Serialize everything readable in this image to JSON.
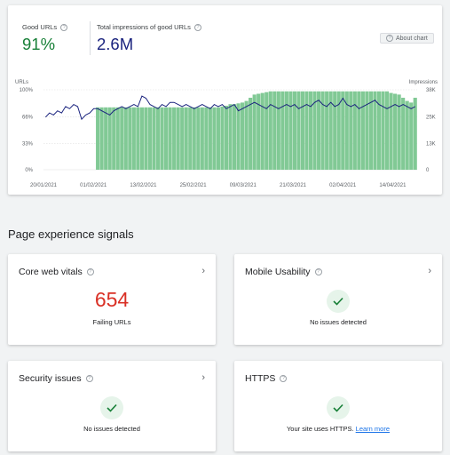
{
  "summary": {
    "good_urls": {
      "label": "Good URLs",
      "value": "91%",
      "color": "#188038"
    },
    "impressions": {
      "label": "Total impressions of good URLs",
      "value": "2.6M",
      "color": "#1a237e"
    },
    "about_chart": "About chart"
  },
  "chart_data": {
    "type": "bar",
    "left_axis": {
      "label": "URLs",
      "ticks": [
        "100%",
        "66%",
        "33%",
        "0%"
      ]
    },
    "right_axis": {
      "label": "Impressions",
      "ticks": [
        "38K",
        "25K",
        "13K",
        "0"
      ]
    },
    "x_tick_labels": [
      "20/01/2021",
      "01/02/2021",
      "13/02/2021",
      "25/02/2021",
      "09/03/2021",
      "21/03/2021",
      "02/04/2021",
      "14/04/2021"
    ],
    "series": [
      {
        "values": [
          0,
          0,
          0,
          0,
          0,
          0,
          0,
          0,
          0,
          0,
          0,
          0,
          0,
          78,
          78,
          78,
          78,
          78,
          78,
          78,
          78,
          78,
          78,
          78,
          78,
          78,
          78,
          78,
          78,
          78,
          78,
          78,
          78,
          78,
          78,
          78,
          78,
          78,
          78,
          78,
          78,
          78,
          78,
          78,
          79,
          80,
          82,
          82,
          83,
          84,
          86,
          90,
          94,
          95,
          96,
          97,
          98,
          98,
          98,
          98,
          98,
          98,
          98,
          98,
          98,
          98,
          98,
          98,
          98,
          98,
          98,
          98,
          98,
          98,
          98,
          98,
          98,
          98,
          98,
          98,
          98,
          98,
          98,
          98,
          98,
          98,
          96,
          95,
          94,
          90,
          86,
          84,
          90
        ]
      },
      {
        "values": [
          25,
          27,
          26,
          28,
          27,
          30,
          29,
          31,
          30,
          24,
          26,
          27,
          29,
          29,
          28,
          27,
          26,
          28,
          29,
          30,
          29,
          30,
          31,
          30,
          35,
          34,
          31,
          30,
          29,
          31,
          30,
          32,
          32,
          31,
          30,
          31,
          30,
          29,
          30,
          31,
          30,
          29,
          31,
          30,
          31,
          29,
          30,
          31,
          28,
          29,
          30,
          31,
          32,
          31,
          30,
          29,
          31,
          30,
          29,
          30,
          31,
          30,
          31,
          29,
          30,
          31,
          30,
          32,
          33,
          31,
          30,
          32,
          30,
          31,
          34,
          31,
          30,
          31,
          29,
          30,
          31,
          32,
          33,
          31,
          30,
          29,
          30,
          31,
          30,
          31,
          30,
          29,
          30
        ]
      }
    ],
    "colors": {
      "bars": "#81c995",
      "line": "#1a237e"
    }
  },
  "section_title": "Page experience signals",
  "signals": {
    "core_web_vitals": {
      "title": "Core web vitals",
      "value": "654",
      "caption": "Failing URLs"
    },
    "mobile_usability": {
      "title": "Mobile Usability",
      "caption": "No issues detected"
    },
    "security_issues": {
      "title": "Security issues",
      "caption": "No issues detected"
    },
    "https": {
      "title": "HTTPS",
      "caption": "Your site uses HTTPS.",
      "link": "Learn more"
    }
  }
}
